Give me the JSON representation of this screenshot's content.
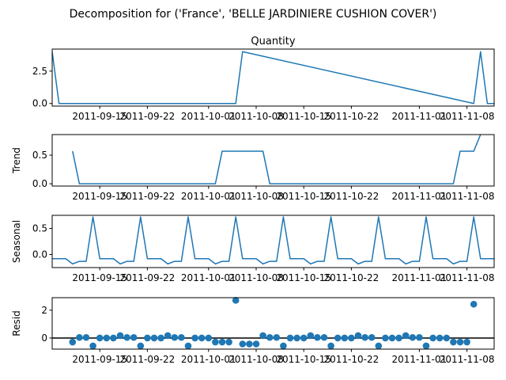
{
  "figure": {
    "suptitle": "Decomposition for ('France', 'BELLE JARDINIERE CUSHION COVER')"
  },
  "chart_data": [
    {
      "type": "line",
      "panel": "observed",
      "title": "Quantity",
      "ylabel": "",
      "color": "#1f77b4",
      "xlim": [
        "2011-09-08",
        "2011-11-12"
      ],
      "ylim": [
        -0.2,
        4.2
      ],
      "yticks": [
        0.0,
        2.5
      ],
      "ytick_labels": [
        "0.0",
        "2.5"
      ],
      "xticks": [
        "2011-09-15",
        "2011-09-22",
        "2011-10-01",
        "2011-10-08",
        "2011-10-15",
        "2011-10-22",
        "2011-11-01",
        "2011-11-08"
      ],
      "xtick_labels": [
        "2011-09-15",
        "2011-09-22",
        "2011-10-01",
        "2011-10-08",
        "2011-10-15",
        "2011-10-22",
        "2011-11-01",
        "2011-11-08"
      ],
      "series": [
        {
          "x": [
            "2011-09-08",
            "2011-09-09",
            "2011-10-05",
            "2011-10-06",
            "2011-11-09",
            "2011-11-10",
            "2011-11-11",
            "2011-11-12"
          ],
          "values": [
            4,
            0,
            0,
            4,
            0,
            4,
            0,
            0
          ]
        }
      ]
    },
    {
      "type": "line",
      "panel": "trend",
      "ylabel": "Trend",
      "color": "#1f77b4",
      "xlim": [
        "2011-09-08",
        "2011-11-12"
      ],
      "ylim": [
        -0.04,
        0.86
      ],
      "yticks": [
        0.0,
        0.5
      ],
      "ytick_labels": [
        "0.0",
        "0.5"
      ],
      "xticks": [
        "2011-09-15",
        "2011-09-22",
        "2011-10-01",
        "2011-10-08",
        "2011-10-15",
        "2011-10-22",
        "2011-11-01",
        "2011-11-08"
      ],
      "xtick_labels": [
        "2011-09-15",
        "2011-09-22",
        "2011-10-01",
        "2011-10-08",
        "2011-10-15",
        "2011-10-22",
        "2011-11-01",
        "2011-11-08"
      ],
      "series": [
        {
          "x": [
            "2011-09-11",
            "2011-09-12",
            "2011-10-02",
            "2011-10-03",
            "2011-10-09",
            "2011-10-10",
            "2011-11-06",
            "2011-11-07",
            "2011-11-09",
            "2011-11-10"
          ],
          "values": [
            0.57,
            0,
            0,
            0.57,
            0.57,
            0,
            0,
            0.57,
            0.57,
            0.86
          ]
        }
      ]
    },
    {
      "type": "line",
      "panel": "seasonal",
      "ylabel": "Seasonal",
      "color": "#1f77b4",
      "xlim": [
        "2011-09-08",
        "2011-11-12"
      ],
      "ylim": [
        -0.25,
        0.75
      ],
      "yticks": [
        0.0,
        0.5
      ],
      "ytick_labels": [
        "0.0",
        "0.5"
      ],
      "xticks": [
        "2011-09-15",
        "2011-09-22",
        "2011-10-01",
        "2011-10-08",
        "2011-10-15",
        "2011-10-22",
        "2011-11-01",
        "2011-11-08"
      ],
      "xtick_labels": [
        "2011-09-15",
        "2011-09-22",
        "2011-10-01",
        "2011-10-08",
        "2011-10-15",
        "2011-10-22",
        "2011-11-01",
        "2011-11-08"
      ],
      "period": 7,
      "pattern": [
        -0.08,
        -0.08,
        -0.08,
        -0.18,
        -0.13,
        -0.13,
        0.72
      ],
      "series": [
        {
          "x_start": "2011-09-08",
          "x_end": "2011-11-12"
        }
      ]
    },
    {
      "type": "scatter",
      "panel": "resid",
      "ylabel": "Resid",
      "color": "#1f77b4",
      "baseline": 0,
      "xlim": [
        "2011-09-08",
        "2011-11-12"
      ],
      "ylim": [
        -0.8,
        2.9
      ],
      "yticks": [
        0,
        2
      ],
      "ytick_labels": [
        "0",
        "2"
      ],
      "xticks": [
        "2011-09-15",
        "2011-09-22",
        "2011-10-01",
        "2011-10-08",
        "2011-10-15",
        "2011-10-22",
        "2011-11-01",
        "2011-11-08"
      ],
      "xtick_labels": [
        "2011-09-15",
        "2011-09-22",
        "2011-10-01",
        "2011-10-08",
        "2011-10-15",
        "2011-10-22",
        "2011-11-01",
        "2011-11-08"
      ],
      "series": [
        {
          "x_start": "2011-09-11",
          "values": [
            -0.29,
            0.04,
            0.04,
            -0.57,
            0.0,
            0.0,
            0.0,
            0.17,
            0.04,
            0.04,
            -0.57,
            0.0,
            0.0,
            0.0,
            0.17,
            0.04,
            0.04,
            -0.57,
            0.0,
            0.0,
            0.0,
            -0.29,
            -0.29,
            -0.29,
            2.71,
            -0.43,
            -0.43,
            -0.43,
            0.17,
            0.04,
            0.04,
            -0.57,
            0.0,
            0.0,
            0.0,
            0.17,
            0.04,
            0.04,
            -0.57,
            0.0,
            0.0,
            0.0,
            0.17,
            0.04,
            0.04,
            -0.57,
            0.0,
            0.0,
            0.0,
            0.17,
            0.04,
            0.04,
            -0.57,
            0.0,
            0.0,
            0.0,
            -0.29,
            -0.29,
            -0.29,
            2.43
          ]
        }
      ]
    }
  ]
}
